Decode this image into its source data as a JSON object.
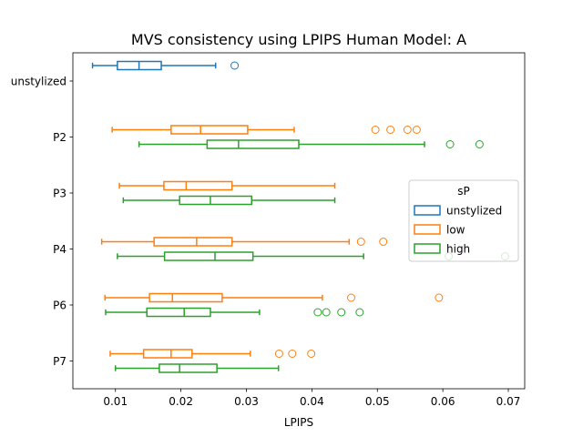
{
  "chart_data": {
    "type": "boxplot",
    "orientation": "horizontal",
    "title": "MVS consistency using LPIPS Human Model: A",
    "xlabel": "LPIPS",
    "ylabel": "",
    "xlim": [
      0.0035,
      0.0725
    ],
    "xticks": [
      {
        "value": 0.01,
        "label": "0.01"
      },
      {
        "value": 0.02,
        "label": "0.02"
      },
      {
        "value": 0.03,
        "label": "0.03"
      },
      {
        "value": 0.04,
        "label": "0.04"
      },
      {
        "value": 0.05,
        "label": "0.05"
      },
      {
        "value": 0.06,
        "label": "0.06"
      },
      {
        "value": 0.07,
        "label": "0.07"
      }
    ],
    "categories": [
      "unstylized",
      "P2",
      "P3",
      "P4",
      "P6",
      "P7"
    ],
    "series": [
      {
        "name": "unstylized",
        "color": "#1f77b4"
      },
      {
        "name": "low",
        "color": "#ff7f0e"
      },
      {
        "name": "high",
        "color": "#2ca02c"
      }
    ],
    "legend": {
      "title": "sP",
      "position": "right"
    },
    "boxes": [
      {
        "category": "unstylized",
        "series": "unstylized",
        "whislo": 0.0065,
        "q1": 0.0103,
        "med": 0.0136,
        "q3": 0.017,
        "whishi": 0.0253,
        "fliers": [
          0.0282
        ]
      },
      {
        "category": "P2",
        "series": "low",
        "whislo": 0.0095,
        "q1": 0.0185,
        "med": 0.023,
        "q3": 0.0302,
        "whishi": 0.0373,
        "fliers": [
          0.0497,
          0.052,
          0.0546,
          0.056
        ]
      },
      {
        "category": "P2",
        "series": "high",
        "whislo": 0.0136,
        "q1": 0.024,
        "med": 0.0288,
        "q3": 0.038,
        "whishi": 0.0572,
        "fliers": [
          0.0611,
          0.0656
        ]
      },
      {
        "category": "P3",
        "series": "low",
        "whislo": 0.0106,
        "q1": 0.0174,
        "med": 0.0208,
        "q3": 0.0278,
        "whishi": 0.0435,
        "fliers": []
      },
      {
        "category": "P3",
        "series": "high",
        "whislo": 0.0112,
        "q1": 0.0198,
        "med": 0.0245,
        "q3": 0.0308,
        "whishi": 0.0435,
        "fliers": []
      },
      {
        "category": "P4",
        "series": "low",
        "whislo": 0.0079,
        "q1": 0.0159,
        "med": 0.0224,
        "q3": 0.0278,
        "whishi": 0.0457,
        "fliers": [
          0.0475,
          0.0509
        ]
      },
      {
        "category": "P4",
        "series": "high",
        "whislo": 0.0103,
        "q1": 0.0175,
        "med": 0.0252,
        "q3": 0.031,
        "whishi": 0.0479,
        "fliers": [
          0.0609,
          0.0695
        ]
      },
      {
        "category": "P6",
        "series": "low",
        "whislo": 0.0084,
        "q1": 0.0152,
        "med": 0.0187,
        "q3": 0.0263,
        "whishi": 0.0416,
        "fliers": [
          0.046,
          0.0594
        ]
      },
      {
        "category": "P6",
        "series": "high",
        "whislo": 0.0085,
        "q1": 0.0148,
        "med": 0.0205,
        "q3": 0.0245,
        "whishi": 0.032,
        "fliers": [
          0.0409,
          0.0422,
          0.0445,
          0.0473
        ]
      },
      {
        "category": "P7",
        "series": "low",
        "whislo": 0.0092,
        "q1": 0.0143,
        "med": 0.0185,
        "q3": 0.0217,
        "whishi": 0.0306,
        "fliers": [
          0.035,
          0.037,
          0.0399
        ]
      },
      {
        "category": "P7",
        "series": "high",
        "whislo": 0.01,
        "q1": 0.0167,
        "med": 0.0198,
        "q3": 0.0255,
        "whishi": 0.0349,
        "fliers": []
      }
    ]
  }
}
